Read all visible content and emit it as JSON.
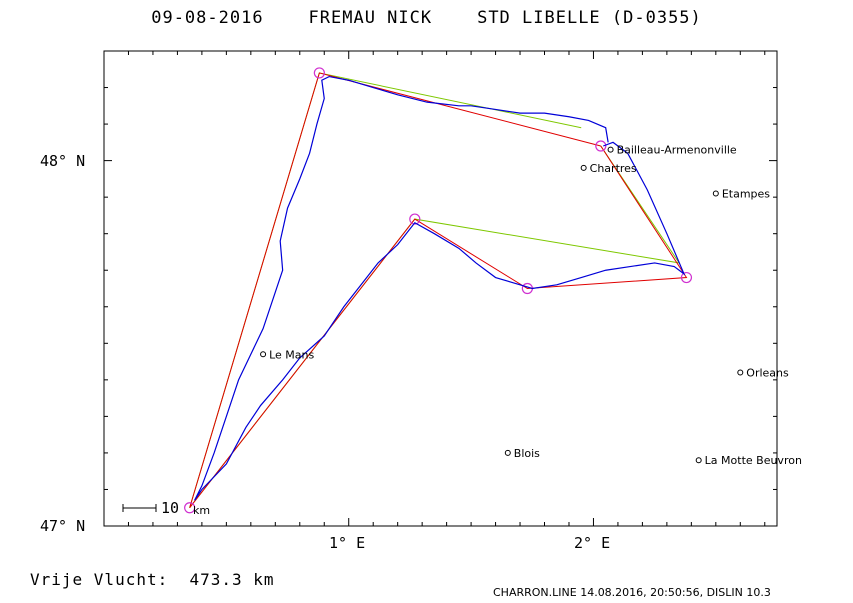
{
  "header": {
    "date": "09-08-2016",
    "pilot": "FREMAU NICK",
    "glider": "STD LIBELLE (D-0355)"
  },
  "axes": {
    "lat_labels": [
      "48° N",
      "47° N"
    ],
    "lon_labels": [
      "1° E",
      "2° E"
    ],
    "lat_range": [
      47.0,
      48.3
    ],
    "lon_range": [
      0.0,
      2.75
    ]
  },
  "scale_bar": {
    "value": "10",
    "unit": "km"
  },
  "towns": [
    {
      "name": "Bailleau-Armenonville",
      "lon": 2.07,
      "lat": 48.03
    },
    {
      "name": "Chartres",
      "lon": 1.96,
      "lat": 47.98
    },
    {
      "name": "Etampes",
      "lon": 2.5,
      "lat": 47.91
    },
    {
      "name": "Le Mans",
      "lon": 0.65,
      "lat": 47.47
    },
    {
      "name": "Orleans",
      "lon": 2.6,
      "lat": 47.42
    },
    {
      "name": "Blois",
      "lon": 1.65,
      "lat": 47.2
    },
    {
      "name": "La Motte Beuvron",
      "lon": 2.43,
      "lat": 47.18
    }
  ],
  "turnpoints": [
    {
      "lon": 2.03,
      "lat": 48.04
    },
    {
      "lon": 0.88,
      "lat": 48.24
    },
    {
      "lon": 0.35,
      "lat": 47.05
    },
    {
      "lon": 1.27,
      "lat": 47.84
    },
    {
      "lon": 1.73,
      "lat": 47.65
    },
    {
      "lon": 2.38,
      "lat": 47.68
    },
    {
      "lon": 2.03,
      "lat": 48.04
    }
  ],
  "declared_task": [
    {
      "lon": 1.95,
      "lat": 48.09
    },
    {
      "lon": 0.88,
      "lat": 48.24
    },
    {
      "lon": 0.35,
      "lat": 47.05
    },
    {
      "lon": 1.27,
      "lat": 47.84
    },
    {
      "lon": 2.35,
      "lat": 47.72
    },
    {
      "lon": 2.03,
      "lat": 48.04
    }
  ],
  "track": [
    [
      2.06,
      48.05
    ],
    [
      2.05,
      48.09
    ],
    [
      1.98,
      48.11
    ],
    [
      1.9,
      48.12
    ],
    [
      1.8,
      48.13
    ],
    [
      1.7,
      48.13
    ],
    [
      1.6,
      48.14
    ],
    [
      1.5,
      48.15
    ],
    [
      1.45,
      48.15
    ],
    [
      1.32,
      48.16
    ],
    [
      1.2,
      48.18
    ],
    [
      1.1,
      48.2
    ],
    [
      1.0,
      48.22
    ],
    [
      0.92,
      48.23
    ],
    [
      0.89,
      48.22
    ],
    [
      0.9,
      48.17
    ],
    [
      0.87,
      48.1
    ],
    [
      0.84,
      48.02
    ],
    [
      0.8,
      47.95
    ],
    [
      0.75,
      47.87
    ],
    [
      0.72,
      47.78
    ],
    [
      0.73,
      47.7
    ],
    [
      0.69,
      47.62
    ],
    [
      0.65,
      47.54
    ],
    [
      0.6,
      47.47
    ],
    [
      0.55,
      47.4
    ],
    [
      0.5,
      47.3
    ],
    [
      0.45,
      47.2
    ],
    [
      0.4,
      47.11
    ],
    [
      0.37,
      47.07
    ],
    [
      0.4,
      47.1
    ],
    [
      0.5,
      47.17
    ],
    [
      0.58,
      47.27
    ],
    [
      0.64,
      47.33
    ],
    [
      0.73,
      47.4
    ],
    [
      0.8,
      47.46
    ],
    [
      0.9,
      47.52
    ],
    [
      0.98,
      47.6
    ],
    [
      1.05,
      47.66
    ],
    [
      1.12,
      47.72
    ],
    [
      1.2,
      47.77
    ],
    [
      1.27,
      47.83
    ],
    [
      1.35,
      47.8
    ],
    [
      1.45,
      47.76
    ],
    [
      1.52,
      47.72
    ],
    [
      1.6,
      47.68
    ],
    [
      1.7,
      47.66
    ],
    [
      1.75,
      47.65
    ],
    [
      1.85,
      47.66
    ],
    [
      1.95,
      47.68
    ],
    [
      2.05,
      47.7
    ],
    [
      2.15,
      47.71
    ],
    [
      2.25,
      47.72
    ],
    [
      2.33,
      47.71
    ],
    [
      2.37,
      47.69
    ],
    [
      2.3,
      47.8
    ],
    [
      2.22,
      47.92
    ],
    [
      2.14,
      48.02
    ],
    [
      2.08,
      48.05
    ],
    [
      2.04,
      48.04
    ]
  ]
}
